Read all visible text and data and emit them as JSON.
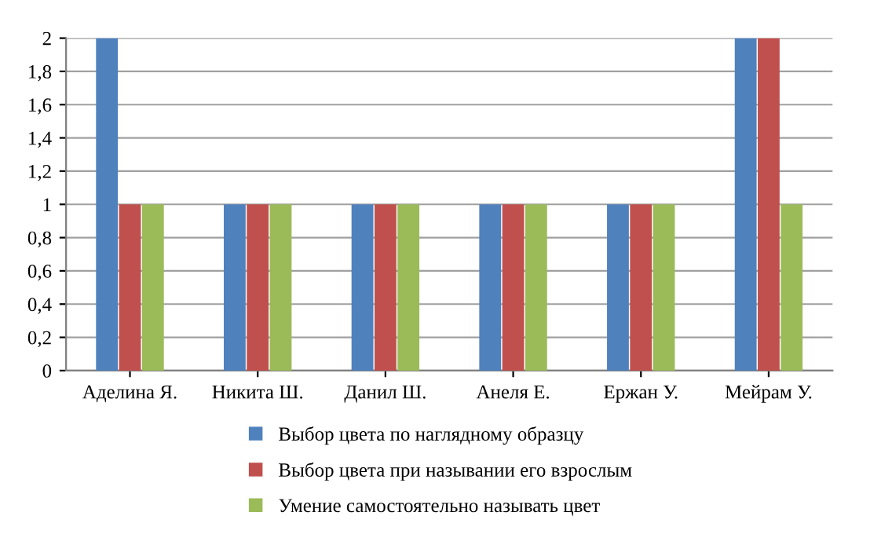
{
  "chart_data": {
    "type": "bar",
    "categories": [
      "Аделина Я.",
      "Никита Ш.",
      "Данил Ш.",
      "Анеля Е.",
      "Ержан У.",
      "Мейрам У."
    ],
    "series": [
      {
        "name": "Выбор цвета по наглядному образцу",
        "color": "#4f81bd",
        "values": [
          2,
          1,
          1,
          1,
          1,
          2
        ]
      },
      {
        "name": "Выбор цвета при назывании его взрослым",
        "color": "#c0504d",
        "values": [
          1,
          1,
          1,
          1,
          1,
          2
        ]
      },
      {
        "name": "Умение самостоятельно называть цвет",
        "color": "#9bbb59",
        "values": [
          1,
          1,
          1,
          1,
          1,
          1
        ]
      }
    ],
    "ylim": [
      0,
      2
    ],
    "yticks": [
      0,
      {
        "value": 0.2,
        "label": "0,2"
      },
      {
        "value": 0.4,
        "label": "0,4"
      },
      {
        "value": 0.6,
        "label": "0,6"
      },
      {
        "value": 0.8,
        "label": "0,8"
      },
      1,
      {
        "value": 1.2,
        "label": "1,2"
      },
      {
        "value": 1.4,
        "label": "1,4"
      },
      {
        "value": 1.6,
        "label": "1,6"
      },
      {
        "value": 1.8,
        "label": "1,8"
      },
      2
    ],
    "grid": "y",
    "legend": "bottom"
  }
}
